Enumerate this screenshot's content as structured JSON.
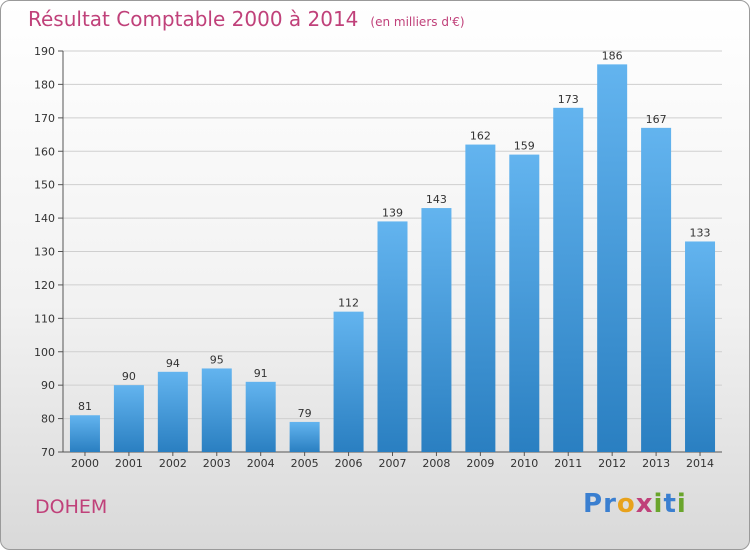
{
  "header": {
    "title": "Résultat Comptable 2000 à 2014",
    "unit": "(en milliers d'€)"
  },
  "footer": {
    "town": "DOHEM",
    "logo": {
      "chars": [
        "P",
        "r",
        "o",
        "x",
        "i",
        "t",
        "i"
      ],
      "colors": [
        "#3a7fd0",
        "#3a7fd0",
        "#e8a21c",
        "#c0417a",
        "#6aa52c",
        "#3a7fd0",
        "#6aa52c"
      ]
    }
  },
  "colors": {
    "bar_light": "#63b4ef",
    "bar_dark": "#2a7fc1",
    "title": "#c0417a",
    "axis": "#555555",
    "grid": "#cfcfcf"
  },
  "chart_data": {
    "type": "bar",
    "title": "Résultat Comptable 2000 à 2014",
    "subtitle": "(en milliers d'€)",
    "categories": [
      "2000",
      "2001",
      "2002",
      "2003",
      "2004",
      "2005",
      "2006",
      "2007",
      "2008",
      "2009",
      "2010",
      "2011",
      "2012",
      "2013",
      "2014"
    ],
    "values": [
      81,
      90,
      94,
      95,
      91,
      79,
      112,
      139,
      143,
      162,
      159,
      173,
      186,
      167,
      133
    ],
    "xlabel": "",
    "ylabel": "",
    "ylim": [
      70,
      190
    ],
    "yticks": [
      70,
      80,
      90,
      100,
      110,
      120,
      130,
      140,
      150,
      160,
      170,
      180,
      190
    ],
    "grid": "horizontal",
    "legend": "none"
  }
}
